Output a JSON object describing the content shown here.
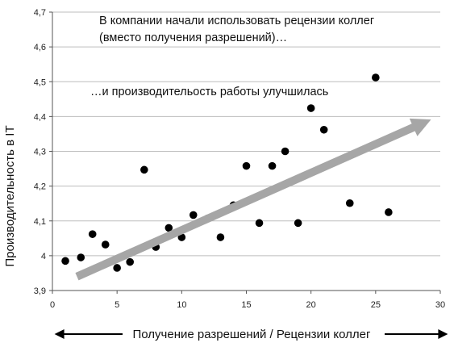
{
  "chart_data": {
    "type": "scatter",
    "ylabel": "Производительность в IT",
    "xlabel": "Получение разрешений / Рецензии коллег",
    "xlim": [
      0,
      30
    ],
    "ylim": [
      3.9,
      4.7
    ],
    "x_ticks": [
      "0",
      "5",
      "10",
      "15",
      "20",
      "25",
      "30"
    ],
    "y_ticks": [
      "3,9",
      "4",
      "4,1",
      "4,2",
      "4,3",
      "4,4",
      "4,5",
      "4,6",
      "4,7"
    ],
    "grid": true,
    "annotations": [
      "В компании начали использовать рецензии коллег",
      "(вместо получения разрешений)…",
      "…и производительость работы улучшилась"
    ],
    "trend_arrow": {
      "color": "#a6a6a6",
      "from": [
        1.9,
        3.94
      ],
      "to": [
        28.6,
        4.38
      ]
    },
    "x_axis_arrows": "both",
    "points": [
      {
        "x": 1.0,
        "y": 3.985
      },
      {
        "x": 2.2,
        "y": 3.995
      },
      {
        "x": 3.1,
        "y": 4.062
      },
      {
        "x": 4.1,
        "y": 4.032
      },
      {
        "x": 5.0,
        "y": 3.965
      },
      {
        "x": 6.0,
        "y": 3.982
      },
      {
        "x": 7.1,
        "y": 4.247
      },
      {
        "x": 8.0,
        "y": 4.025
      },
      {
        "x": 9.0,
        "y": 4.08
      },
      {
        "x": 10.0,
        "y": 4.053
      },
      {
        "x": 10.9,
        "y": 4.117
      },
      {
        "x": 12.0,
        "y": 4.107
      },
      {
        "x": 13.0,
        "y": 4.053
      },
      {
        "x": 14.0,
        "y": 4.145
      },
      {
        "x": 15.0,
        "y": 4.258
      },
      {
        "x": 16.0,
        "y": 4.094
      },
      {
        "x": 17.0,
        "y": 4.258
      },
      {
        "x": 18.0,
        "y": 4.3
      },
      {
        "x": 19.0,
        "y": 4.094
      },
      {
        "x": 20.0,
        "y": 4.424
      },
      {
        "x": 21.0,
        "y": 4.362
      },
      {
        "x": 23.0,
        "y": 4.151
      },
      {
        "x": 25.0,
        "y": 4.512
      },
      {
        "x": 26.0,
        "y": 4.125
      }
    ]
  }
}
